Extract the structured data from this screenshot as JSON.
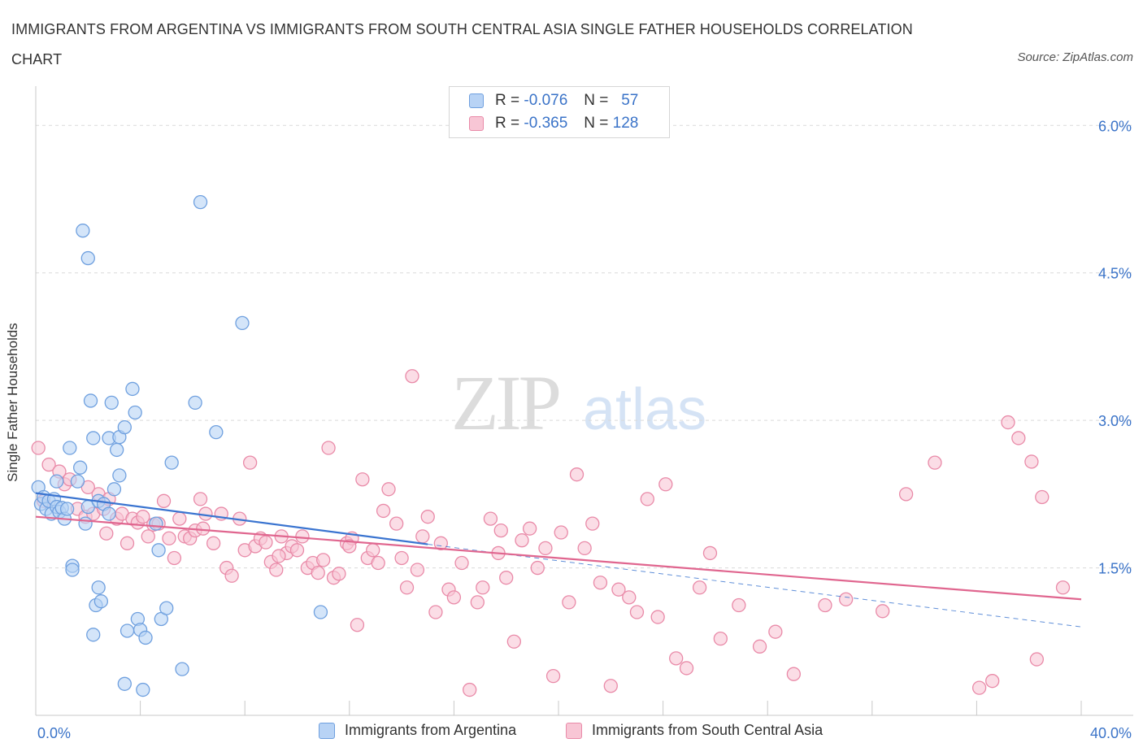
{
  "title": "IMMIGRANTS FROM ARGENTINA VS IMMIGRANTS FROM SOUTH CENTRAL ASIA SINGLE FATHER HOUSEHOLDS CORRELATION CHART",
  "source": "Source: ZipAtlas.com",
  "watermark": {
    "zip": "ZIP",
    "atlas": "atlas"
  },
  "legend_top": {
    "rows": [
      {
        "r_label": "R =",
        "r_value": "-0.076",
        "n_label": "N =",
        "n_value": "57"
      },
      {
        "r_label": "R =",
        "r_value": "-0.365",
        "n_label": "N =",
        "n_value": "128"
      }
    ]
  },
  "colors": {
    "argentina_fill": "#b8d3f5",
    "argentina_stroke": "#6fa0df",
    "argentina_line": "#3a74d0",
    "sca_fill": "#f8c6d5",
    "sca_stroke": "#e98aa8",
    "sca_line": "#e0668f",
    "axis_label": "#3a73c8",
    "grid": "#d9d9d9"
  },
  "chart_data": {
    "type": "scatter",
    "title": "IMMIGRANTS FROM ARGENTINA VS IMMIGRANTS FROM SOUTH CENTRAL ASIA SINGLE FATHER HOUSEHOLDS CORRELATION CHART",
    "xlabel": "",
    "ylabel": "Single Father Households",
    "xlim": [
      0,
      40
    ],
    "ylim": [
      0,
      6.3
    ],
    "x_tick_labels": [
      "0.0%",
      "40.0%"
    ],
    "y_ticks": [
      1.5,
      3.0,
      4.5,
      6.0
    ],
    "y_tick_labels": [
      "1.5%",
      "3.0%",
      "4.5%",
      "6.0%"
    ],
    "grid": true,
    "legend_position": "bottom",
    "series": [
      {
        "name": "Immigrants from Argentina",
        "r": -0.076,
        "n": 57,
        "trend": {
          "x": [
            0,
            15
          ],
          "y": [
            2.26,
            1.74
          ],
          "dashed_extension": {
            "x": [
              15,
              40
            ],
            "y": [
              1.74,
              0.9
            ]
          }
        },
        "points": [
          [
            0.1,
            2.32
          ],
          [
            0.2,
            2.15
          ],
          [
            0.3,
            2.22
          ],
          [
            0.4,
            2.1
          ],
          [
            0.5,
            2.18
          ],
          [
            0.6,
            2.05
          ],
          [
            0.7,
            2.2
          ],
          [
            0.8,
            2.12
          ],
          [
            0.9,
            2.07
          ],
          [
            1.0,
            2.11
          ],
          [
            1.1,
            2.0
          ],
          [
            1.2,
            2.1
          ],
          [
            0.8,
            2.38
          ],
          [
            1.3,
            2.72
          ],
          [
            1.4,
            1.52
          ],
          [
            1.4,
            1.48
          ],
          [
            1.6,
            2.38
          ],
          [
            1.7,
            2.52
          ],
          [
            1.8,
            4.93
          ],
          [
            1.9,
            1.95
          ],
          [
            2.0,
            2.12
          ],
          [
            2.0,
            4.65
          ],
          [
            2.1,
            3.2
          ],
          [
            2.2,
            2.82
          ],
          [
            2.2,
            0.82
          ],
          [
            2.3,
            1.12
          ],
          [
            2.4,
            2.18
          ],
          [
            2.4,
            1.3
          ],
          [
            2.5,
            1.16
          ],
          [
            2.6,
            2.15
          ],
          [
            2.8,
            2.05
          ],
          [
            2.8,
            2.82
          ],
          [
            2.9,
            3.18
          ],
          [
            3.0,
            2.3
          ],
          [
            3.1,
            2.7
          ],
          [
            3.2,
            2.83
          ],
          [
            3.2,
            2.44
          ],
          [
            3.4,
            0.32
          ],
          [
            3.4,
            2.93
          ],
          [
            3.5,
            0.86
          ],
          [
            3.7,
            3.32
          ],
          [
            3.8,
            3.08
          ],
          [
            3.9,
            0.98
          ],
          [
            4.0,
            0.87
          ],
          [
            4.1,
            0.26
          ],
          [
            4.2,
            0.79
          ],
          [
            4.6,
            1.95
          ],
          [
            4.7,
            1.68
          ],
          [
            4.8,
            0.98
          ],
          [
            5.0,
            1.09
          ],
          [
            5.2,
            2.57
          ],
          [
            5.6,
            0.47
          ],
          [
            6.1,
            3.18
          ],
          [
            6.3,
            5.22
          ],
          [
            6.9,
            2.88
          ],
          [
            7.9,
            3.99
          ],
          [
            10.9,
            1.05
          ]
        ]
      },
      {
        "name": "Immigrants from South Central Asia",
        "r": -0.365,
        "n": 128,
        "trend": {
          "x": [
            0,
            40
          ],
          "y": [
            2.02,
            1.18
          ]
        },
        "points": [
          [
            0.1,
            2.72
          ],
          [
            0.5,
            2.55
          ],
          [
            0.9,
            2.48
          ],
          [
            1.1,
            2.35
          ],
          [
            1.3,
            2.4
          ],
          [
            1.6,
            2.1
          ],
          [
            1.9,
            2.02
          ],
          [
            2.2,
            2.05
          ],
          [
            2.4,
            2.25
          ],
          [
            2.6,
            2.1
          ],
          [
            2.8,
            2.2
          ],
          [
            2.7,
            1.85
          ],
          [
            3.1,
            2.0
          ],
          [
            3.3,
            2.05
          ],
          [
            3.5,
            1.75
          ],
          [
            3.7,
            2.0
          ],
          [
            3.9,
            1.96
          ],
          [
            4.1,
            2.02
          ],
          [
            4.3,
            1.82
          ],
          [
            4.5,
            1.94
          ],
          [
            4.7,
            1.95
          ],
          [
            4.9,
            2.18
          ],
          [
            5.1,
            1.8
          ],
          [
            5.3,
            1.6
          ],
          [
            5.5,
            2.0
          ],
          [
            5.7,
            1.82
          ],
          [
            5.9,
            1.8
          ],
          [
            6.1,
            1.88
          ],
          [
            6.3,
            2.2
          ],
          [
            6.5,
            2.05
          ],
          [
            6.8,
            1.75
          ],
          [
            7.1,
            2.05
          ],
          [
            7.3,
            1.5
          ],
          [
            7.5,
            1.42
          ],
          [
            7.8,
            2.0
          ],
          [
            8.0,
            1.68
          ],
          [
            8.2,
            2.57
          ],
          [
            8.4,
            1.72
          ],
          [
            8.6,
            1.8
          ],
          [
            8.8,
            1.76
          ],
          [
            9.0,
            1.56
          ],
          [
            9.2,
            1.48
          ],
          [
            9.4,
            1.82
          ],
          [
            9.6,
            1.65
          ],
          [
            9.8,
            1.72
          ],
          [
            10.0,
            1.68
          ],
          [
            10.2,
            1.82
          ],
          [
            10.4,
            1.5
          ],
          [
            10.6,
            1.55
          ],
          [
            10.8,
            1.45
          ],
          [
            11.0,
            1.58
          ],
          [
            11.2,
            2.72
          ],
          [
            11.4,
            1.4
          ],
          [
            11.6,
            1.44
          ],
          [
            11.9,
            1.75
          ],
          [
            12.1,
            1.8
          ],
          [
            12.3,
            0.92
          ],
          [
            12.5,
            2.4
          ],
          [
            12.7,
            1.6
          ],
          [
            12.9,
            1.68
          ],
          [
            13.1,
            1.55
          ],
          [
            13.3,
            2.08
          ],
          [
            13.5,
            2.3
          ],
          [
            13.8,
            1.95
          ],
          [
            14.0,
            1.6
          ],
          [
            14.2,
            1.3
          ],
          [
            14.4,
            3.45
          ],
          [
            14.6,
            1.48
          ],
          [
            14.8,
            1.82
          ],
          [
            15.0,
            2.02
          ],
          [
            15.3,
            1.05
          ],
          [
            15.5,
            1.75
          ],
          [
            15.8,
            1.28
          ],
          [
            16.0,
            1.2
          ],
          [
            16.3,
            1.55
          ],
          [
            16.6,
            0.26
          ],
          [
            16.9,
            1.15
          ],
          [
            17.1,
            1.3
          ],
          [
            17.4,
            2.0
          ],
          [
            17.7,
            1.65
          ],
          [
            18.0,
            1.4
          ],
          [
            18.3,
            0.75
          ],
          [
            18.6,
            1.78
          ],
          [
            18.9,
            1.9
          ],
          [
            19.2,
            1.5
          ],
          [
            19.5,
            1.7
          ],
          [
            19.8,
            0.4
          ],
          [
            20.1,
            1.86
          ],
          [
            20.4,
            1.15
          ],
          [
            20.7,
            2.45
          ],
          [
            21.0,
            1.7
          ],
          [
            21.3,
            1.95
          ],
          [
            21.6,
            1.35
          ],
          [
            22.0,
            0.3
          ],
          [
            22.3,
            1.28
          ],
          [
            22.7,
            1.2
          ],
          [
            23.0,
            1.05
          ],
          [
            23.4,
            2.2
          ],
          [
            23.8,
            1.0
          ],
          [
            24.1,
            2.35
          ],
          [
            24.5,
            0.58
          ],
          [
            24.9,
            0.48
          ],
          [
            25.4,
            1.3
          ],
          [
            25.8,
            1.65
          ],
          [
            26.2,
            0.78
          ],
          [
            26.9,
            1.12
          ],
          [
            27.7,
            0.7
          ],
          [
            28.3,
            0.85
          ],
          [
            29.0,
            0.42
          ],
          [
            30.2,
            1.12
          ],
          [
            31.0,
            1.18
          ],
          [
            32.4,
            1.06
          ],
          [
            33.3,
            2.25
          ],
          [
            34.4,
            2.57
          ],
          [
            36.1,
            0.28
          ],
          [
            36.6,
            0.35
          ],
          [
            37.2,
            2.98
          ],
          [
            37.6,
            2.82
          ],
          [
            38.1,
            2.58
          ],
          [
            38.3,
            0.57
          ],
          [
            38.5,
            2.22
          ],
          [
            39.3,
            1.3
          ],
          [
            0.3,
            2.18
          ],
          [
            2.0,
            2.32
          ],
          [
            6.4,
            1.9
          ],
          [
            9.3,
            1.62
          ],
          [
            12.0,
            1.72
          ],
          [
            17.8,
            1.88
          ]
        ]
      }
    ]
  },
  "legend_bottom": [
    {
      "label": "Immigrants from Argentina"
    },
    {
      "label": "Immigrants from South Central Asia"
    }
  ]
}
